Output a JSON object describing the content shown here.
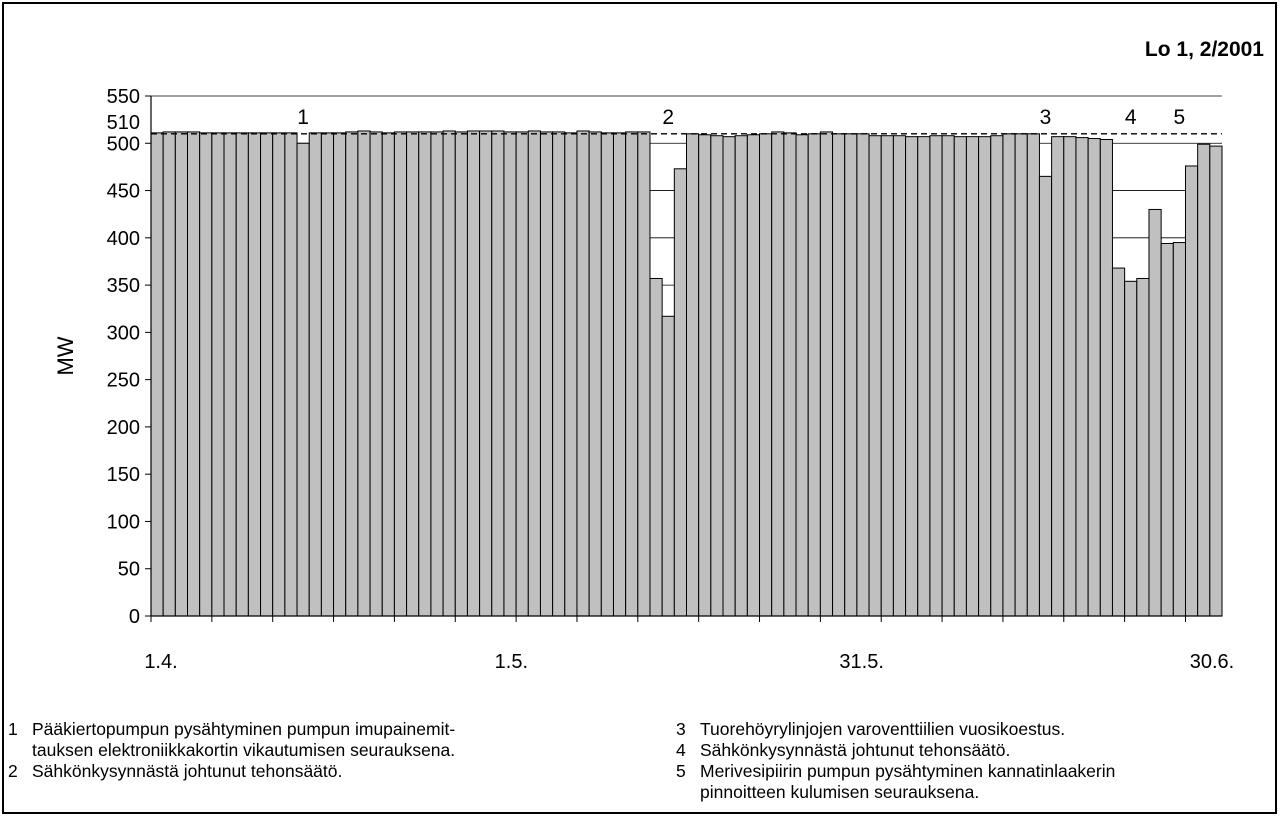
{
  "chart_data": {
    "type": "bar",
    "title": "Lo 1, 2/2001",
    "ylabel": "MW",
    "ylim": [
      0,
      550
    ],
    "yticks": [
      0,
      50,
      100,
      150,
      200,
      250,
      300,
      350,
      400,
      450,
      500,
      550
    ],
    "ytick_labels": [
      "0",
      "50",
      "100",
      "150",
      "200",
      "250",
      "300",
      "350",
      "400",
      "450",
      "500",
      "550"
    ],
    "reference_line": {
      "value": 510,
      "label": "510",
      "style": "dashed"
    },
    "x_tick_labels": [
      "1.4.",
      "1.5.",
      "31.5.",
      "30.6."
    ],
    "x_range": [
      "1.4.",
      "30.6."
    ],
    "bar_color": "#c0c0c0",
    "values": [
      511,
      512,
      512,
      512,
      511,
      511,
      511,
      511,
      511,
      511,
      511,
      511,
      500,
      511,
      511,
      511,
      512,
      513,
      512,
      511,
      512,
      512,
      512,
      512,
      513,
      512,
      513,
      513,
      513,
      512,
      512,
      513,
      512,
      512,
      511,
      513,
      512,
      511,
      511,
      512,
      512,
      357,
      317,
      473,
      510,
      509,
      508,
      507,
      508,
      509,
      510,
      512,
      511,
      509,
      510,
      512,
      510,
      510,
      510,
      508,
      508,
      508,
      507,
      507,
      508,
      508,
      507,
      507,
      507,
      508,
      510,
      510,
      510,
      465,
      507,
      507,
      506,
      505,
      504,
      368,
      354,
      357,
      430,
      394,
      395,
      476,
      499,
      497
    ],
    "event_markers": [
      {
        "label": "1",
        "bar_index": 12
      },
      {
        "label": "2",
        "bar_index": 42
      },
      {
        "label": "3",
        "bar_index": 73
      },
      {
        "label": "4",
        "bar_index": 80
      },
      {
        "label": "5",
        "bar_index": 84
      }
    ]
  },
  "notes": {
    "left": [
      {
        "num": "1",
        "lines": [
          "Pääkiertopumpun pysähtyminen pumpun imupainemit-",
          "tauksen elektroniikkakortin vikautumisen seurauksena."
        ]
      },
      {
        "num": "2",
        "lines": [
          "Sähkönkysynnästä johtunut tehonsäätö."
        ]
      }
    ],
    "right": [
      {
        "num": "3",
        "lines": [
          "Tuorehöyrylinjojen varoventtiilien vuosikoestus."
        ]
      },
      {
        "num": "4",
        "lines": [
          "Sähkönkysynnästä johtunut tehonsäätö."
        ]
      },
      {
        "num": "5",
        "lines": [
          "Merivesipiirin pumpun pysähtyminen kannatinlaakerin",
          "pinnoitteen kulumisen seurauksena."
        ]
      }
    ]
  }
}
